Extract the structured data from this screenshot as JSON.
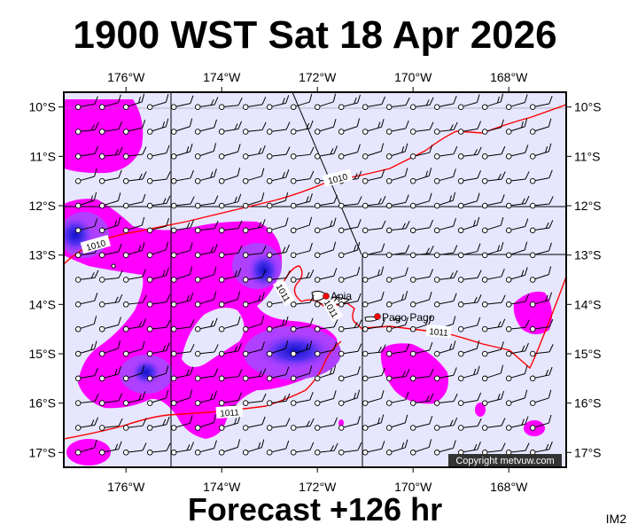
{
  "title": "1900 WST Sat 18 Apr 2026",
  "subtitle": "Forecast +126 hr",
  "corner_label": "IM2",
  "copyright": "Copyright metvuw.com",
  "colors": {
    "ocean": "#e6e6ff",
    "rain_light": "#ff00ff",
    "rain_mid": "#a030ff",
    "rain_heavy": "#2020e0",
    "isobar": "#ff0000",
    "coast": "#000000"
  },
  "axes": {
    "lon_labels": [
      "176°W",
      "174°W",
      "172°W",
      "170°W",
      "168°W"
    ],
    "lat_labels": [
      "10°S",
      "11°S",
      "12°S",
      "13°S",
      "14°S",
      "15°S",
      "16°S",
      "17°S"
    ],
    "lon_values": [
      -176,
      -174,
      -172,
      -170,
      -168
    ],
    "lat_values": [
      -10,
      -11,
      -12,
      -13,
      -14,
      -15,
      -16,
      -17
    ],
    "lon_range": [
      -177.3,
      -166.8
    ],
    "lat_range": [
      -17.3,
      -9.7
    ]
  },
  "places": [
    {
      "name": "Apia",
      "lon": -171.76,
      "lat": -13.83
    },
    {
      "name": "Pago Pago",
      "lon": -170.7,
      "lat": -14.28
    }
  ],
  "isobar_labels": [
    "1010",
    "1010",
    "1011",
    "1011",
    "1011",
    "1011"
  ],
  "wind_barbs": {
    "lon_step": 0.5,
    "lat_step": 0.5,
    "direction": "south-easterly trades"
  },
  "icons": [
    "wind-barb-icon",
    "place-marker-icon"
  ]
}
